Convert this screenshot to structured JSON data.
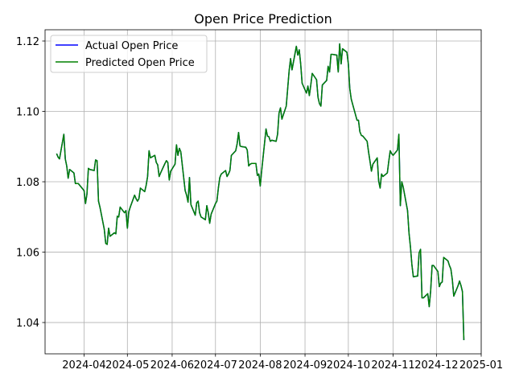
{
  "chart_data": {
    "type": "line",
    "title": "Open Price Prediction",
    "x": [
      "2024-03-13",
      "2024-03-14",
      "2024-03-15",
      "2024-03-18",
      "2024-03-19",
      "2024-03-20",
      "2024-03-21",
      "2024-03-22",
      "2024-03-25",
      "2024-03-26",
      "2024-03-27",
      "2024-03-28",
      "2024-04-01",
      "2024-04-02",
      "2024-04-03",
      "2024-04-04",
      "2024-04-05",
      "2024-04-08",
      "2024-04-09",
      "2024-04-10",
      "2024-04-11",
      "2024-04-12",
      "2024-04-15",
      "2024-04-16",
      "2024-04-17",
      "2024-04-18",
      "2024-04-19",
      "2024-04-22",
      "2024-04-23",
      "2024-04-24",
      "2024-04-25",
      "2024-04-26",
      "2024-04-29",
      "2024-04-30",
      "2024-05-01",
      "2024-05-02",
      "2024-05-03",
      "2024-05-06",
      "2024-05-07",
      "2024-05-08",
      "2024-05-09",
      "2024-05-10",
      "2024-05-13",
      "2024-05-14",
      "2024-05-15",
      "2024-05-16",
      "2024-05-17",
      "2024-05-20",
      "2024-05-21",
      "2024-05-22",
      "2024-05-23",
      "2024-05-24",
      "2024-05-27",
      "2024-05-28",
      "2024-05-29",
      "2024-05-30",
      "2024-05-31",
      "2024-06-03",
      "2024-06-04",
      "2024-06-05",
      "2024-06-06",
      "2024-06-07",
      "2024-06-10",
      "2024-06-11",
      "2024-06-12",
      "2024-06-13",
      "2024-06-14",
      "2024-06-17",
      "2024-06-18",
      "2024-06-19",
      "2024-06-20",
      "2024-06-21",
      "2024-06-24",
      "2024-06-25",
      "2024-06-26",
      "2024-06-27",
      "2024-06-28",
      "2024-07-01",
      "2024-07-02",
      "2024-07-03",
      "2024-07-04",
      "2024-07-05",
      "2024-07-08",
      "2024-07-09",
      "2024-07-10",
      "2024-07-11",
      "2024-07-12",
      "2024-07-15",
      "2024-07-16",
      "2024-07-17",
      "2024-07-18",
      "2024-07-19",
      "2024-07-22",
      "2024-07-23",
      "2024-07-24",
      "2024-07-25",
      "2024-07-26",
      "2024-07-29",
      "2024-07-30",
      "2024-07-31",
      "2024-08-01",
      "2024-08-02",
      "2024-08-05",
      "2024-08-06",
      "2024-08-07",
      "2024-08-08",
      "2024-08-09",
      "2024-08-12",
      "2024-08-13",
      "2024-08-14",
      "2024-08-15",
      "2024-08-16",
      "2024-08-19",
      "2024-08-20",
      "2024-08-21",
      "2024-08-22",
      "2024-08-23",
      "2024-08-26",
      "2024-08-27",
      "2024-08-28",
      "2024-08-29",
      "2024-08-30",
      "2024-09-02",
      "2024-09-03",
      "2024-09-04",
      "2024-09-05",
      "2024-09-06",
      "2024-09-09",
      "2024-09-10",
      "2024-09-11",
      "2024-09-12",
      "2024-09-13",
      "2024-09-16",
      "2024-09-17",
      "2024-09-18",
      "2024-09-19",
      "2024-09-20",
      "2024-09-23",
      "2024-09-24",
      "2024-09-25",
      "2024-09-26",
      "2024-09-27",
      "2024-09-30",
      "2024-10-01",
      "2024-10-02",
      "2024-10-03",
      "2024-10-04",
      "2024-10-07",
      "2024-10-08",
      "2024-10-09",
      "2024-10-10",
      "2024-10-11",
      "2024-10-14",
      "2024-10-15",
      "2024-10-16",
      "2024-10-17",
      "2024-10-18",
      "2024-10-21",
      "2024-10-22",
      "2024-10-23",
      "2024-10-24",
      "2024-10-25",
      "2024-10-28",
      "2024-10-29",
      "2024-10-30",
      "2024-10-31",
      "2024-11-01",
      "2024-11-04",
      "2024-11-05",
      "2024-11-06",
      "2024-11-07",
      "2024-11-08",
      "2024-11-11",
      "2024-11-12",
      "2024-11-13",
      "2024-11-14",
      "2024-11-15",
      "2024-11-18",
      "2024-11-19",
      "2024-11-20",
      "2024-11-21",
      "2024-11-22",
      "2024-11-25",
      "2024-11-26",
      "2024-11-27",
      "2024-11-28",
      "2024-11-29",
      "2024-12-02",
      "2024-12-03",
      "2024-12-04",
      "2024-12-05",
      "2024-12-06",
      "2024-12-09",
      "2024-12-10",
      "2024-12-11",
      "2024-12-12",
      "2024-12-13",
      "2024-12-16",
      "2024-12-17",
      "2024-12-18",
      "2024-12-19",
      "2024-12-20"
    ],
    "series": [
      {
        "name": "Actual Open Price",
        "color": "#0000ff",
        "values": [
          1.088,
          1.087,
          1.0865,
          1.0935,
          1.0865,
          1.0845,
          1.081,
          1.0835,
          1.0825,
          1.0795,
          1.0795,
          1.0795,
          1.0775,
          1.0738,
          1.0765,
          1.0838,
          1.0835,
          1.0832,
          1.0862,
          1.086,
          1.0745,
          1.0728,
          1.0665,
          1.0625,
          1.0622,
          1.0668,
          1.0645,
          1.0655,
          1.0652,
          1.0702,
          1.07,
          1.0728,
          1.0712,
          1.0718,
          1.0668,
          1.0715,
          1.0728,
          1.0762,
          1.0752,
          1.0745,
          1.0752,
          1.0782,
          1.0772,
          1.079,
          1.0815,
          1.0888,
          1.0868,
          1.0875,
          1.0855,
          1.0848,
          1.0815,
          1.0825,
          1.0852,
          1.086,
          1.0855,
          1.0805,
          1.083,
          1.085,
          1.0905,
          1.0875,
          1.0895,
          1.0885,
          1.0775,
          1.0762,
          1.0742,
          1.0812,
          1.0735,
          1.0705,
          1.074,
          1.0745,
          1.0712,
          1.07,
          1.0692,
          1.0732,
          1.0712,
          1.0682,
          1.0708,
          1.0738,
          1.0745,
          1.0782,
          1.0812,
          1.0822,
          1.0832,
          1.0815,
          1.0822,
          1.0832,
          1.0875,
          1.0888,
          1.0908,
          1.094,
          1.0902,
          1.09,
          1.0898,
          1.089,
          1.0845,
          1.085,
          1.0852,
          1.0852,
          1.0818,
          1.0822,
          1.0788,
          1.0832,
          1.095,
          1.093,
          1.0928,
          1.0915,
          1.0918,
          1.0915,
          1.0935,
          1.0995,
          1.101,
          1.0978,
          1.1015,
          1.1065,
          1.1115,
          1.115,
          1.1118,
          1.1185,
          1.116,
          1.1175,
          1.1135,
          1.108,
          1.1052,
          1.1072,
          1.1045,
          1.1075,
          1.1108,
          1.109,
          1.104,
          1.1022,
          1.1015,
          1.1075,
          1.1088,
          1.1128,
          1.1112,
          1.1162,
          1.1162,
          1.116,
          1.1112,
          1.1192,
          1.1135,
          1.1178,
          1.1168,
          1.1135,
          1.1065,
          1.1035,
          1.102,
          1.0975,
          1.0975,
          1.0942,
          1.0932,
          1.093,
          1.0915,
          1.0885,
          1.0858,
          1.083,
          1.085,
          1.0868,
          1.0802,
          1.0782,
          1.0822,
          1.0815,
          1.0825,
          1.0858,
          1.0888,
          1.088,
          1.0875,
          1.089,
          1.0935,
          1.0732,
          1.08,
          1.0785,
          1.0718,
          1.0655,
          1.0615,
          1.0565,
          1.053,
          1.0532,
          1.0598,
          1.0608,
          1.047,
          1.047,
          1.0482,
          1.0445,
          1.049,
          1.0562,
          1.0562,
          1.0545,
          1.0502,
          1.0512,
          1.0515,
          1.0585,
          1.0575,
          1.0562,
          1.0552,
          1.0522,
          1.0475,
          1.0505,
          1.0518,
          1.0505,
          1.0488,
          1.035
        ]
      },
      {
        "name": "Predicted Open Price",
        "color": "#008000",
        "values": [
          1.088,
          1.087,
          1.0865,
          1.0935,
          1.0865,
          1.0845,
          1.081,
          1.0835,
          1.0825,
          1.0795,
          1.0795,
          1.0795,
          1.0775,
          1.0738,
          1.0765,
          1.0838,
          1.0835,
          1.0832,
          1.0862,
          1.086,
          1.0745,
          1.0728,
          1.0665,
          1.0625,
          1.0622,
          1.0668,
          1.0645,
          1.0655,
          1.0652,
          1.0702,
          1.07,
          1.0728,
          1.0712,
          1.0718,
          1.0668,
          1.0715,
          1.0728,
          1.0762,
          1.0752,
          1.0745,
          1.0752,
          1.0782,
          1.0772,
          1.079,
          1.0815,
          1.0888,
          1.0868,
          1.0875,
          1.0855,
          1.0848,
          1.0815,
          1.0825,
          1.0852,
          1.086,
          1.0855,
          1.0805,
          1.083,
          1.085,
          1.0905,
          1.0875,
          1.0895,
          1.0885,
          1.0775,
          1.0762,
          1.0742,
          1.0812,
          1.0735,
          1.0705,
          1.074,
          1.0745,
          1.0712,
          1.07,
          1.0692,
          1.0732,
          1.0712,
          1.0682,
          1.0708,
          1.0738,
          1.0745,
          1.0782,
          1.0812,
          1.0822,
          1.0832,
          1.0815,
          1.0822,
          1.0832,
          1.0875,
          1.0888,
          1.0908,
          1.094,
          1.0902,
          1.09,
          1.0898,
          1.089,
          1.0845,
          1.085,
          1.0852,
          1.0852,
          1.0818,
          1.0822,
          1.0788,
          1.0832,
          1.095,
          1.093,
          1.0928,
          1.0915,
          1.0918,
          1.0915,
          1.0935,
          1.0995,
          1.101,
          1.0978,
          1.1015,
          1.1065,
          1.1115,
          1.115,
          1.1118,
          1.1185,
          1.116,
          1.1175,
          1.1135,
          1.108,
          1.1052,
          1.1072,
          1.1045,
          1.1075,
          1.1108,
          1.109,
          1.104,
          1.1022,
          1.1015,
          1.1075,
          1.1088,
          1.1128,
          1.1112,
          1.1162,
          1.1162,
          1.116,
          1.1112,
          1.1192,
          1.1135,
          1.1178,
          1.1168,
          1.1135,
          1.1065,
          1.1035,
          1.102,
          1.0975,
          1.0975,
          1.0942,
          1.0932,
          1.093,
          1.0915,
          1.0885,
          1.0858,
          1.083,
          1.085,
          1.0868,
          1.0802,
          1.0782,
          1.0822,
          1.0815,
          1.0825,
          1.0858,
          1.0888,
          1.088,
          1.0875,
          1.089,
          1.0935,
          1.0732,
          1.08,
          1.0785,
          1.0718,
          1.0655,
          1.0615,
          1.0565,
          1.053,
          1.0532,
          1.0598,
          1.0608,
          1.047,
          1.047,
          1.0482,
          1.0445,
          1.049,
          1.0562,
          1.0562,
          1.0545,
          1.0502,
          1.0512,
          1.0515,
          1.0585,
          1.0575,
          1.0562,
          1.0552,
          1.0522,
          1.0475,
          1.0505,
          1.0518,
          1.0505,
          1.0488,
          1.035
        ]
      }
    ],
    "xlim": [
      "2024-03-05",
      "2025-01-01"
    ],
    "xticks": [
      {
        "value": "2024-04-01",
        "label": "2024-04"
      },
      {
        "value": "2024-05-01",
        "label": "2024-05"
      },
      {
        "value": "2024-06-01",
        "label": "2024-06"
      },
      {
        "value": "2024-07-01",
        "label": "2024-07"
      },
      {
        "value": "2024-08-01",
        "label": "2024-08"
      },
      {
        "value": "2024-09-01",
        "label": "2024-09"
      },
      {
        "value": "2024-10-01",
        "label": "2024-10"
      },
      {
        "value": "2024-11-01",
        "label": "2024-11"
      },
      {
        "value": "2024-12-01",
        "label": "2024-12"
      },
      {
        "value": "2025-01-01",
        "label": "2025-01"
      }
    ],
    "ylim": [
      1.0311,
      1.1232
    ],
    "yticks": [
      1.04,
      1.06,
      1.08,
      {
        "value": 1.1,
        "label": "1.10"
      },
      1.12
    ],
    "grid": true,
    "legend": "upper left"
  }
}
